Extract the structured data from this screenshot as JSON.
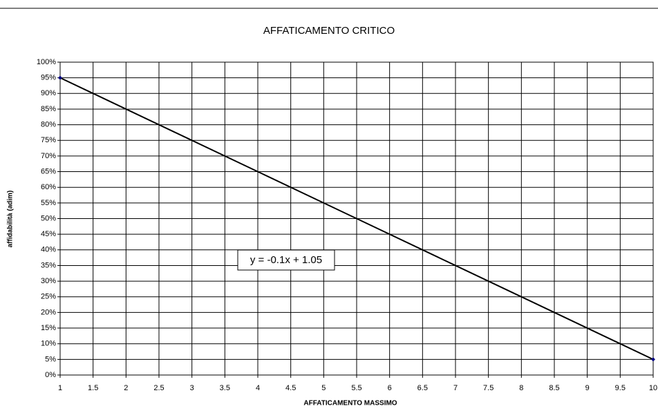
{
  "chart_data": {
    "type": "line",
    "title": "AFFATICAMENTO CRITICO",
    "xlabel": "AFFATICAMENTO MASSIMO",
    "ylabel": "affidabilità (adim)",
    "annotation": "y = -0.1x + 1.05",
    "series": [
      {
        "x": [
          1,
          10
        ],
        "values": [
          95,
          5
        ],
        "color": "#000000",
        "marker_color": "#000080"
      }
    ],
    "xlim": [
      1,
      10
    ],
    "xticks": [
      1,
      1.5,
      2,
      2.5,
      3,
      3.5,
      4,
      4.5,
      5,
      5.5,
      6,
      6.5,
      7,
      7.5,
      8,
      8.5,
      9,
      9.5,
      10
    ],
    "ylim": [
      0,
      100
    ],
    "yticks": [
      {
        "value": 0,
        "label": "0%"
      },
      {
        "value": 5,
        "label": "5%"
      },
      {
        "value": 10,
        "label": "10%"
      },
      {
        "value": 15,
        "label": "15%"
      },
      {
        "value": 20,
        "label": "20%"
      },
      {
        "value": 25,
        "label": "25%"
      },
      {
        "value": 30,
        "label": "30%"
      },
      {
        "value": 35,
        "label": "35%"
      },
      {
        "value": 40,
        "label": "40%"
      },
      {
        "value": 45,
        "label": "45%"
      },
      {
        "value": 50,
        "label": "50%"
      },
      {
        "value": 55,
        "label": "55%"
      },
      {
        "value": 60,
        "label": "60%"
      },
      {
        "value": 65,
        "label": "65%"
      },
      {
        "value": 70,
        "label": "70%"
      },
      {
        "value": 75,
        "label": "75%"
      },
      {
        "value": 80,
        "label": "80%"
      },
      {
        "value": 85,
        "label": "85%"
      },
      {
        "value": 90,
        "label": "90%"
      },
      {
        "value": 95,
        "label": "95%"
      },
      {
        "value": 100,
        "label": "100%"
      }
    ],
    "grid": true
  }
}
